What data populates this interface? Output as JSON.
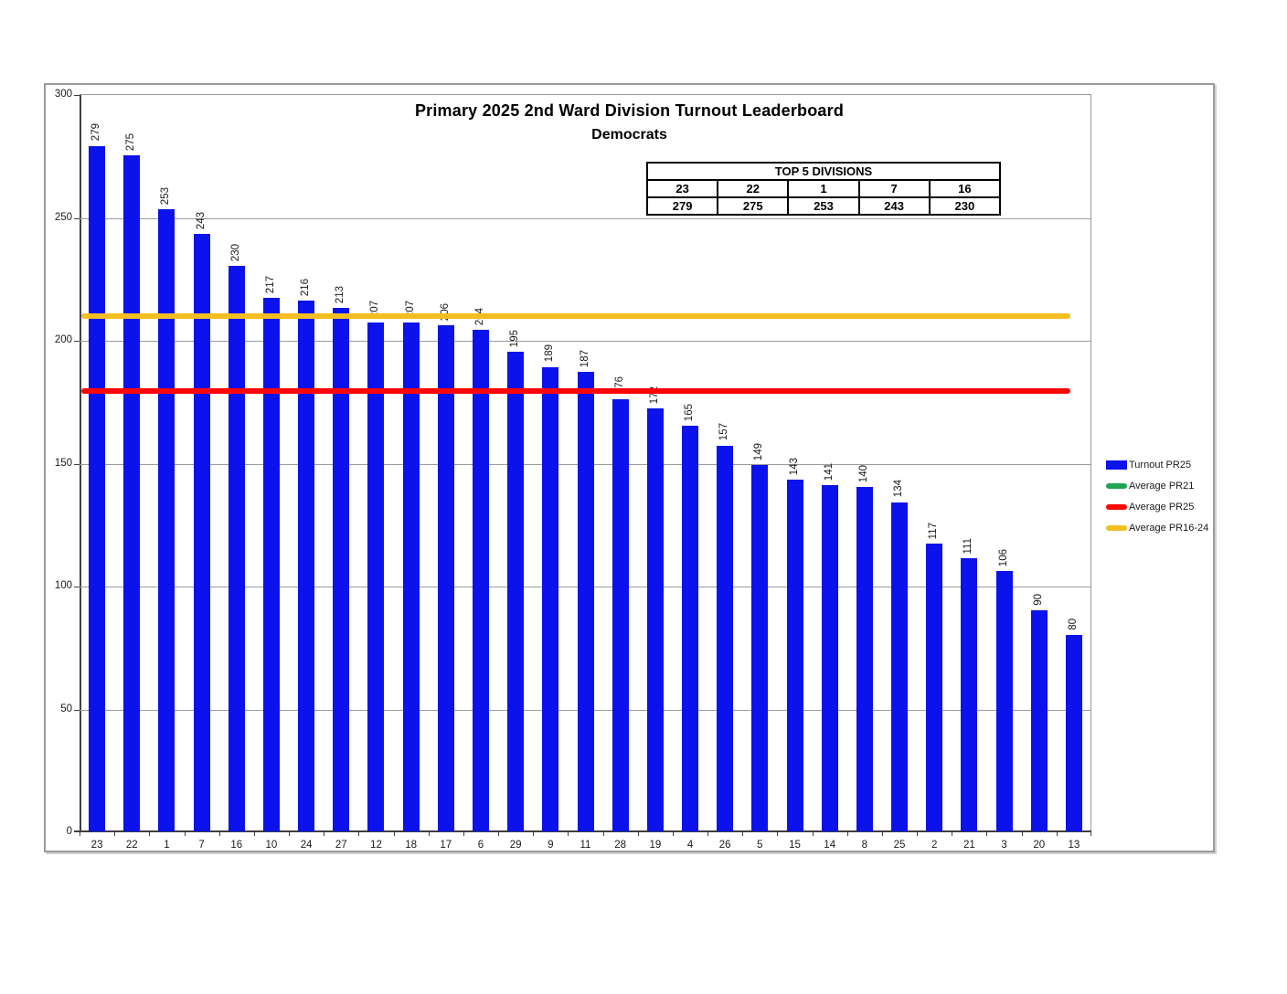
{
  "title": "Primary 2025 2nd Ward Division Turnout Leaderboard",
  "subtitle": "Democrats",
  "top5_table": {
    "header": "TOP 5 DIVISIONS",
    "divisions": [
      "23",
      "22",
      "1",
      "7",
      "16"
    ],
    "values": [
      "279",
      "275",
      "253",
      "243",
      "230"
    ]
  },
  "chart_data": {
    "type": "bar",
    "title": "Primary 2025 2nd Ward Division Turnout Leaderboard",
    "subtitle": "Democrats",
    "categories": [
      "23",
      "22",
      "1",
      "7",
      "16",
      "10",
      "24",
      "27",
      "12",
      "18",
      "17",
      "6",
      "29",
      "9",
      "11",
      "28",
      "19",
      "4",
      "26",
      "5",
      "15",
      "14",
      "8",
      "25",
      "2",
      "21",
      "3",
      "20",
      "13"
    ],
    "values": [
      279,
      275,
      253,
      243,
      230,
      217,
      216,
      213,
      207,
      207,
      206,
      204,
      195,
      189,
      187,
      176,
      172,
      165,
      157,
      149,
      143,
      141,
      140,
      134,
      117,
      111,
      106,
      90,
      80
    ],
    "xlabel": "",
    "ylabel": "",
    "ylim": [
      0,
      300
    ],
    "yticks": [
      0,
      50,
      100,
      150,
      200,
      250,
      300
    ],
    "grid": true,
    "bar_color": "#0b12ec",
    "ref_lines": [
      {
        "name": "Average PR16-24",
        "value": 210,
        "color": "#f2be22"
      },
      {
        "name": "Average PR25",
        "value": 179.4,
        "color": "#fe0505"
      }
    ],
    "legend_position": "right",
    "legend": [
      {
        "label": "Turnout PR25",
        "color": "#0b12ec",
        "shape": "rect"
      },
      {
        "label": "Average PR21",
        "color": "#21a453",
        "shape": "line"
      },
      {
        "label": "Average PR25",
        "color": "#fe0505",
        "shape": "line"
      },
      {
        "label": "Average PR16-24",
        "color": "#f2be22",
        "shape": "line"
      }
    ]
  }
}
